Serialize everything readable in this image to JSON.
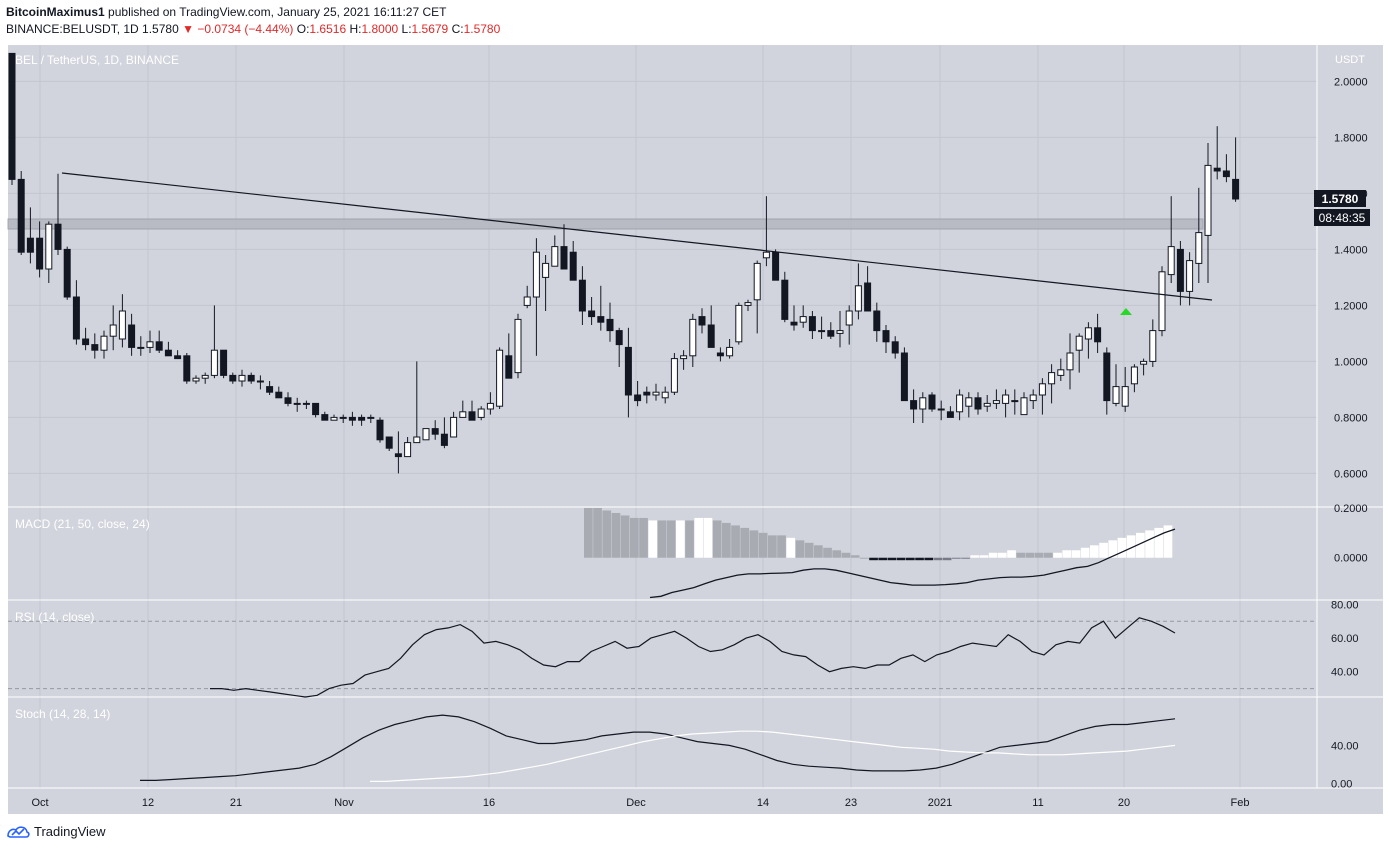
{
  "header": {
    "author": "BitcoinMaximus1",
    "published_text": "published on TradingView.com, January 25, 2021 16:11:27 CET",
    "symbol": "BINANCE:BELUSDT, 1D",
    "last": "1.5780",
    "change_arrow": "▼",
    "change": "−0.0734 (−4.44%)",
    "o_label": "O:",
    "o_val": "1.6516",
    "h_label": "H:",
    "h_val": "1.8000",
    "l_label": "L:",
    "l_val": "1.5679",
    "c_label": "C:",
    "c_val": "1.5780"
  },
  "pane_title": "BEL / TetherUS, 1D, BINANCE",
  "axis_unit": "USDT",
  "price_tag": "1.5780",
  "countdown_tag": "08:48:35",
  "macd_label": "MACD (21, 50, close, 24)",
  "rsi_label": "RSI (14, close)",
  "stoch_label": "Stoch (14, 28, 14)",
  "footer_brand": "TradingView",
  "colors": {
    "background": "#d1d4dc",
    "candle_up": "#ffffff",
    "candle_down": "#131722",
    "trendline": "#131722",
    "zone": "#b2b5be",
    "signal": "#26d926",
    "price_tag_bg": "#131722"
  },
  "chart_data": [
    {
      "type": "candlestick",
      "title": "BEL / TetherUS, 1D, BINANCE",
      "ylim": [
        0.48,
        2.13
      ],
      "y_ticks": [
        "2.0000",
        "1.8000",
        "1.6000",
        "1.4000",
        "1.2000",
        "1.0000",
        "0.8000",
        "0.6000"
      ],
      "x_tick_labels": [
        "Oct",
        "12",
        "21",
        "Nov",
        "16",
        "Dec",
        "14",
        "23",
        "2021",
        "11",
        "20",
        "Feb"
      ],
      "annotations": [
        "descending trendline from ~1.67 (early Oct) to ~1.21 (late Jan)",
        "horizontal resistance zone ~1.47–1.50",
        "green up-arrow signal below 2021-01-20 candle"
      ],
      "candles_ohlc": [
        [
          2.1,
          2.1,
          1.63,
          1.65
        ],
        [
          1.65,
          1.68,
          1.38,
          1.39
        ],
        [
          1.44,
          1.55,
          1.35,
          1.39
        ],
        [
          1.44,
          1.5,
          1.3,
          1.33
        ],
        [
          1.33,
          1.5,
          1.28,
          1.49
        ],
        [
          1.49,
          1.67,
          1.38,
          1.4
        ],
        [
          1.4,
          1.41,
          1.22,
          1.23
        ],
        [
          1.23,
          1.29,
          1.06,
          1.08
        ],
        [
          1.08,
          1.12,
          1.04,
          1.06
        ],
        [
          1.06,
          1.1,
          1.01,
          1.04
        ],
        [
          1.04,
          1.11,
          1.01,
          1.09
        ],
        [
          1.09,
          1.2,
          1.04,
          1.13
        ],
        [
          1.08,
          1.24,
          1.05,
          1.18
        ],
        [
          1.13,
          1.17,
          1.02,
          1.05
        ],
        [
          1.05,
          1.09,
          1.02,
          1.05
        ],
        [
          1.05,
          1.11,
          1.03,
          1.07
        ],
        [
          1.07,
          1.11,
          1.03,
          1.04
        ],
        [
          1.04,
          1.07,
          1.02,
          1.02
        ],
        [
          1.02,
          1.04,
          1.01,
          1.01
        ],
        [
          1.02,
          1.03,
          0.92,
          0.93
        ],
        [
          0.93,
          0.95,
          0.92,
          0.94
        ],
        [
          0.94,
          0.96,
          0.92,
          0.95
        ],
        [
          0.95,
          1.2,
          0.94,
          1.04
        ],
        [
          1.04,
          1.04,
          0.94,
          0.95
        ],
        [
          0.95,
          0.96,
          0.92,
          0.93
        ],
        [
          0.93,
          0.97,
          0.91,
          0.95
        ],
        [
          0.95,
          0.96,
          0.92,
          0.93
        ],
        [
          0.93,
          0.95,
          0.9,
          0.93
        ],
        [
          0.91,
          0.93,
          0.88,
          0.89
        ],
        [
          0.89,
          0.91,
          0.87,
          0.87
        ],
        [
          0.87,
          0.89,
          0.84,
          0.85
        ],
        [
          0.85,
          0.87,
          0.82,
          0.85
        ],
        [
          0.85,
          0.86,
          0.83,
          0.85
        ],
        [
          0.85,
          0.85,
          0.8,
          0.81
        ],
        [
          0.81,
          0.82,
          0.79,
          0.79
        ],
        [
          0.79,
          0.81,
          0.79,
          0.8
        ],
        [
          0.8,
          0.81,
          0.78,
          0.8
        ],
        [
          0.8,
          0.82,
          0.77,
          0.79
        ],
        [
          0.8,
          0.81,
          0.77,
          0.79
        ],
        [
          0.8,
          0.81,
          0.78,
          0.8
        ],
        [
          0.79,
          0.8,
          0.71,
          0.72
        ],
        [
          0.73,
          0.73,
          0.68,
          0.69
        ],
        [
          0.67,
          0.75,
          0.6,
          0.66
        ],
        [
          0.66,
          0.73,
          0.66,
          0.71
        ],
        [
          0.71,
          1.0,
          0.71,
          0.73
        ],
        [
          0.72,
          0.76,
          0.72,
          0.76
        ],
        [
          0.76,
          0.79,
          0.72,
          0.74
        ],
        [
          0.74,
          0.8,
          0.69,
          0.7
        ],
        [
          0.73,
          0.82,
          0.73,
          0.8
        ],
        [
          0.8,
          0.86,
          0.8,
          0.82
        ],
        [
          0.82,
          0.86,
          0.79,
          0.79
        ],
        [
          0.8,
          0.84,
          0.79,
          0.83
        ],
        [
          0.83,
          0.89,
          0.81,
          0.85
        ],
        [
          0.84,
          1.05,
          0.83,
          1.04
        ],
        [
          1.02,
          1.1,
          0.98,
          0.94
        ],
        [
          0.96,
          1.17,
          0.94,
          1.15
        ],
        [
          1.2,
          1.27,
          1.19,
          1.23
        ],
        [
          1.23,
          1.44,
          1.02,
          1.39
        ],
        [
          1.3,
          1.38,
          1.18,
          1.35
        ],
        [
          1.34,
          1.45,
          1.34,
          1.41
        ],
        [
          1.41,
          1.49,
          1.34,
          1.33
        ],
        [
          1.39,
          1.43,
          1.31,
          1.29
        ],
        [
          1.29,
          1.34,
          1.13,
          1.18
        ],
        [
          1.18,
          1.23,
          1.13,
          1.16
        ],
        [
          1.16,
          1.27,
          1.11,
          1.14
        ],
        [
          1.15,
          1.21,
          1.07,
          1.11
        ],
        [
          1.11,
          1.12,
          0.98,
          1.06
        ],
        [
          1.05,
          1.12,
          0.8,
          0.88
        ],
        [
          0.88,
          0.93,
          0.84,
          0.86
        ],
        [
          0.89,
          0.91,
          0.85,
          0.88
        ],
        [
          0.88,
          0.92,
          0.86,
          0.89
        ],
        [
          0.87,
          0.91,
          0.85,
          0.89
        ],
        [
          0.89,
          1.03,
          0.88,
          1.01
        ],
        [
          1.01,
          1.04,
          0.97,
          1.02
        ],
        [
          1.02,
          1.17,
          0.98,
          1.15
        ],
        [
          1.16,
          1.19,
          1.1,
          1.13
        ],
        [
          1.13,
          1.2,
          1.08,
          1.05
        ],
        [
          1.03,
          1.05,
          1.0,
          1.02
        ],
        [
          1.02,
          1.08,
          1.01,
          1.05
        ],
        [
          1.07,
          1.21,
          1.06,
          1.2
        ],
        [
          1.2,
          1.22,
          1.18,
          1.21
        ],
        [
          1.22,
          1.36,
          1.1,
          1.35
        ],
        [
          1.37,
          1.59,
          1.34,
          1.39
        ],
        [
          1.39,
          1.4,
          1.32,
          1.29
        ],
        [
          1.29,
          1.32,
          1.14,
          1.15
        ],
        [
          1.14,
          1.2,
          1.11,
          1.13
        ],
        [
          1.14,
          1.2,
          1.12,
          1.16
        ],
        [
          1.16,
          1.18,
          1.08,
          1.11
        ],
        [
          1.11,
          1.16,
          1.08,
          1.11
        ],
        [
          1.11,
          1.14,
          1.08,
          1.09
        ],
        [
          1.1,
          1.18,
          1.05,
          1.11
        ],
        [
          1.13,
          1.2,
          1.06,
          1.18
        ],
        [
          1.18,
          1.35,
          1.15,
          1.27
        ],
        [
          1.28,
          1.34,
          1.18,
          1.18
        ],
        [
          1.18,
          1.21,
          1.07,
          1.11
        ],
        [
          1.11,
          1.13,
          1.03,
          1.07
        ],
        [
          1.07,
          1.09,
          1.01,
          1.03
        ],
        [
          1.03,
          1.05,
          0.87,
          0.86
        ],
        [
          0.86,
          0.9,
          0.78,
          0.83
        ],
        [
          0.83,
          0.89,
          0.78,
          0.87
        ],
        [
          0.88,
          0.89,
          0.82,
          0.83
        ],
        [
          0.83,
          0.86,
          0.79,
          0.83
        ],
        [
          0.82,
          0.84,
          0.8,
          0.8
        ],
        [
          0.82,
          0.9,
          0.79,
          0.88
        ],
        [
          0.84,
          0.89,
          0.8,
          0.87
        ],
        [
          0.87,
          0.89,
          0.81,
          0.83
        ],
        [
          0.84,
          0.88,
          0.82,
          0.85
        ],
        [
          0.85,
          0.9,
          0.83,
          0.86
        ],
        [
          0.85,
          0.9,
          0.8,
          0.88
        ],
        [
          0.86,
          0.9,
          0.81,
          0.86
        ],
        [
          0.81,
          0.89,
          0.81,
          0.87
        ],
        [
          0.86,
          0.9,
          0.83,
          0.88
        ],
        [
          0.88,
          0.94,
          0.81,
          0.92
        ],
        [
          0.92,
          0.99,
          0.85,
          0.96
        ],
        [
          0.95,
          1.01,
          0.93,
          0.97
        ],
        [
          0.97,
          1.1,
          0.9,
          1.03
        ],
        [
          1.04,
          1.1,
          0.96,
          1.09
        ],
        [
          1.08,
          1.14,
          1.01,
          1.12
        ],
        [
          1.12,
          1.17,
          1.03,
          1.07
        ],
        [
          1.03,
          1.05,
          0.81,
          0.86
        ],
        [
          0.85,
          0.99,
          0.84,
          0.91
        ],
        [
          0.84,
          0.98,
          0.82,
          0.91
        ],
        [
          0.92,
          0.99,
          0.89,
          0.98
        ],
        [
          0.99,
          1.01,
          0.95,
          1.0
        ],
        [
          1.0,
          1.15,
          0.98,
          1.11
        ],
        [
          1.11,
          1.34,
          1.09,
          1.32
        ],
        [
          1.31,
          1.59,
          1.28,
          1.41
        ],
        [
          1.4,
          1.43,
          1.2,
          1.25
        ],
        [
          1.25,
          1.39,
          1.2,
          1.36
        ],
        [
          1.35,
          1.62,
          1.28,
          1.46
        ],
        [
          1.45,
          1.78,
          1.28,
          1.7
        ],
        [
          1.69,
          1.84,
          1.65,
          1.68
        ],
        [
          1.68,
          1.74,
          1.64,
          1.66
        ],
        [
          1.65,
          1.8,
          1.57,
          1.58
        ]
      ]
    },
    {
      "type": "bar",
      "title": "MACD (21, 50, close, 24)",
      "y_ticks": [
        "0.2000",
        "0.0000"
      ],
      "ylim": [
        -0.17,
        0.2
      ],
      "histogram_values": [
        0.2,
        0.2,
        0.19,
        0.18,
        0.17,
        0.16,
        0.16,
        0.15,
        0.15,
        0.15,
        0.15,
        0.15,
        0.16,
        0.16,
        0.15,
        0.14,
        0.13,
        0.12,
        0.11,
        0.1,
        0.09,
        0.09,
        0.08,
        0.07,
        0.06,
        0.05,
        0.04,
        0.03,
        0.02,
        0.01,
        0.0,
        -0.01,
        -0.01,
        -0.01,
        -0.01,
        -0.01,
        -0.01,
        -0.01,
        -0.01,
        -0.01,
        0.0,
        0.0,
        0.01,
        0.01,
        0.02,
        0.02,
        0.03,
        0.02,
        0.02,
        0.02,
        0.02,
        0.02,
        0.03,
        0.03,
        0.04,
        0.05,
        0.06,
        0.07,
        0.08,
        0.09,
        0.1,
        0.11,
        0.12,
        0.13
      ],
      "histogram_colors": [
        "#a9abb3",
        "#a9abb3",
        "#a9abb3",
        "#a9abb3",
        "#a9abb3",
        "#a9abb3",
        "#a9abb3",
        "#ffffff",
        "#a9abb3",
        "#a9abb3",
        "#ffffff",
        "#a9abb3",
        "#ffffff",
        "#ffffff",
        "#a9abb3",
        "#a9abb3",
        "#a9abb3",
        "#a9abb3",
        "#a9abb3",
        "#a9abb3",
        "#a9abb3",
        "#a9abb3",
        "#ffffff",
        "#a9abb3",
        "#a9abb3",
        "#a9abb3",
        "#a9abb3",
        "#a9abb3",
        "#a9abb3",
        "#a9abb3",
        "#a9abb3",
        "#131722",
        "#131722",
        "#131722",
        "#131722",
        "#131722",
        "#131722",
        "#131722",
        "#787b86",
        "#787b86",
        "#787b86",
        "#787b86",
        "#ffffff",
        "#ffffff",
        "#ffffff",
        "#ffffff",
        "#ffffff",
        "#a9abb3",
        "#a9abb3",
        "#a9abb3",
        "#a9abb3",
        "#ffffff",
        "#ffffff",
        "#ffffff",
        "#ffffff",
        "#ffffff",
        "#ffffff",
        "#ffffff",
        "#ffffff",
        "#ffffff",
        "#ffffff",
        "#ffffff",
        "#ffffff",
        "#ffffff"
      ],
      "macd_line": [
        -0.16,
        -0.155,
        -0.14,
        -0.13,
        -0.12,
        -0.105,
        -0.09,
        -0.08,
        -0.07,
        -0.065,
        -0.065,
        -0.063,
        -0.062,
        -0.06,
        -0.05,
        -0.045,
        -0.045,
        -0.05,
        -0.06,
        -0.07,
        -0.08,
        -0.09,
        -0.1,
        -0.105,
        -0.11,
        -0.11,
        -0.11,
        -0.108,
        -0.105,
        -0.1,
        -0.09,
        -0.085,
        -0.08,
        -0.078,
        -0.078,
        -0.075,
        -0.07,
        -0.06,
        -0.05,
        -0.04,
        -0.035,
        -0.02,
        0.0,
        0.02,
        0.04,
        0.06,
        0.08,
        0.1,
        0.115
      ]
    },
    {
      "type": "line",
      "title": "RSI (14, close)",
      "y_ticks": [
        "80.00",
        "60.00",
        "40.00"
      ],
      "ylim": [
        25,
        82
      ],
      "bands": [
        70,
        30
      ],
      "values": [
        30,
        30,
        29,
        30,
        29,
        28,
        27,
        26,
        25,
        26,
        30,
        32,
        33,
        38,
        40,
        42,
        48,
        56,
        62,
        65,
        66,
        68,
        64,
        57,
        58,
        56,
        53,
        48,
        44,
        43,
        46,
        46,
        52,
        55,
        58,
        54,
        55,
        60,
        62,
        64,
        60,
        55,
        52,
        53,
        56,
        60,
        62,
        58,
        52,
        50,
        49,
        44,
        40,
        42,
        43,
        42,
        44,
        44,
        48,
        50,
        46,
        50,
        52,
        55,
        57,
        56,
        55,
        62,
        58,
        52,
        50,
        56,
        58,
        57,
        66,
        70,
        60,
        66,
        72,
        70,
        67,
        63
      ]
    },
    {
      "type": "line",
      "title": "Stoch (14, 28, 14)",
      "y_ticks": [
        "40.00",
        "0.00"
      ],
      "ylim": [
        -5,
        90
      ],
      "series": [
        {
          "values": [
            3,
            3,
            4,
            5,
            6,
            7,
            8,
            10,
            12,
            14,
            16,
            20,
            28,
            38,
            48,
            56,
            62,
            66,
            70,
            72,
            70,
            65,
            58,
            50,
            46,
            42,
            42,
            44,
            46,
            50,
            52,
            54,
            54,
            52,
            48,
            44,
            42,
            40,
            36,
            30,
            24,
            20,
            18,
            17,
            16,
            14,
            13,
            13,
            13,
            14,
            16,
            20,
            26,
            32,
            38,
            40,
            42,
            44,
            50,
            56,
            60,
            62,
            62,
            64,
            66,
            68
          ]
        },
        {
          "values": [
            2,
            2,
            3,
            4,
            5,
            6,
            7,
            9,
            11,
            14,
            17,
            20,
            24,
            28,
            32,
            36,
            40,
            44,
            47,
            50,
            52,
            53,
            54,
            55,
            55,
            54,
            52,
            50,
            48,
            46,
            44,
            42,
            40,
            38,
            37,
            36,
            34,
            33,
            32,
            32,
            31,
            30,
            30,
            30,
            31,
            32,
            33,
            34,
            36,
            38,
            40
          ]
        }
      ]
    }
  ]
}
